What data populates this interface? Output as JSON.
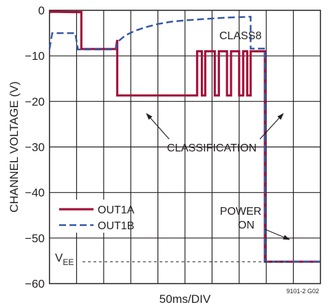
{
  "chart_data": {
    "type": "line",
    "title": "",
    "xlabel": "50ms/DIV",
    "ylabel": "CHANNEL VOLTAGE (V)",
    "xlim": [
      0,
      400
    ],
    "ylim": [
      -60,
      0
    ],
    "yticks": [
      0,
      -10,
      -20,
      -30,
      -40,
      -50,
      -60
    ],
    "ytick_labels": [
      "0",
      "−10",
      "−20",
      "−30",
      "−40",
      "−50",
      "−60"
    ],
    "grid": true,
    "legend": "bottom-left",
    "series": [
      {
        "name": "OUT1A",
        "color": "#a3103b",
        "dash": "solid",
        "points": [
          [
            0,
            -0.5
          ],
          [
            2,
            -0.3
          ],
          [
            40,
            -0.4
          ],
          [
            47,
            -0.4
          ],
          [
            47,
            -8.5
          ],
          [
            98,
            -8.5
          ],
          [
            100,
            -6.5
          ],
          [
            100,
            -18.7
          ],
          [
            218,
            -18.7
          ],
          [
            218,
            -9
          ],
          [
            225,
            -9
          ],
          [
            225,
            -18.7
          ],
          [
            230,
            -18.7
          ],
          [
            230,
            -9
          ],
          [
            244,
            -9
          ],
          [
            244,
            -18.7
          ],
          [
            250,
            -18.7
          ],
          [
            250,
            -9
          ],
          [
            262,
            -9
          ],
          [
            262,
            -18.7
          ],
          [
            268,
            -18.7
          ],
          [
            268,
            -9
          ],
          [
            280,
            -9
          ],
          [
            280,
            -18.7
          ],
          [
            286,
            -18.7
          ],
          [
            286,
            -9
          ],
          [
            292,
            -9
          ],
          [
            292,
            -18.7
          ],
          [
            297,
            -18.7
          ],
          [
            297,
            -9
          ],
          [
            318,
            -9
          ],
          [
            318,
            -55.2
          ],
          [
            400,
            -55.2
          ]
        ]
      },
      {
        "name": "OUT1B",
        "color": "#3558a6",
        "dash": "dashed",
        "points": [
          [
            0,
            -8.5
          ],
          [
            4,
            -5
          ],
          [
            38,
            -5
          ],
          [
            42,
            -8.6
          ],
          [
            98,
            -8.6
          ],
          [
            100,
            -7
          ],
          [
            112,
            -5.5
          ],
          [
            126,
            -4.5
          ],
          [
            140,
            -3.8
          ],
          [
            160,
            -3
          ],
          [
            180,
            -2.5
          ],
          [
            200,
            -2.2
          ],
          [
            220,
            -2
          ],
          [
            240,
            -1.8
          ],
          [
            260,
            -1.6
          ],
          [
            280,
            -1.5
          ],
          [
            297,
            -1.4
          ],
          [
            297,
            -8.4
          ],
          [
            318,
            -8.4
          ],
          [
            318,
            -55.2
          ],
          [
            400,
            -55.2
          ]
        ]
      }
    ],
    "reference_line": {
      "label_main": "V",
      "label_sub": "EE",
      "y": -55.2
    },
    "annotations": {
      "class8": "CLASS8",
      "classification": "CLASSIFICATION",
      "power_line1": "POWER",
      "power_line2": "ON"
    },
    "figure_id": "9101-2 G02"
  }
}
